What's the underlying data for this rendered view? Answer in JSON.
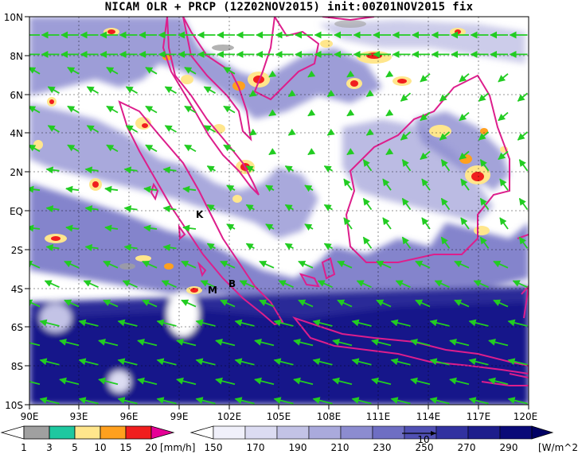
{
  "title": "NICAM OLR + PRCP (12Z02NOV2015) init:00Z01NOV2015 fix",
  "map": {
    "lon_range": [
      90,
      120
    ],
    "lat_range": [
      -10,
      10
    ],
    "x_tick_labels": [
      "90E",
      "93E",
      "96E",
      "99E",
      "102E",
      "105E",
      "108E",
      "111E",
      "114E",
      "117E",
      "120E"
    ],
    "y_tick_labels": [
      "10N",
      "8N",
      "6N",
      "4N",
      "2N",
      "EQ",
      "2S",
      "4S",
      "6S",
      "8S",
      "10S"
    ],
    "station_markers": [
      "K",
      "M",
      "B"
    ],
    "coastline_color": "#dd1e8c",
    "wind_vector_color": "#22cc22"
  },
  "precip_legend": {
    "unit": "[mm/h]",
    "tick_labels": [
      "1",
      "3",
      "5",
      "10",
      "15",
      "20"
    ],
    "colors": [
      "#a0a0a0",
      "#1ec8a0",
      "#ffe68c",
      "#ffa01e",
      "#f01e1e",
      "#e60096"
    ]
  },
  "olr_legend": {
    "unit": "[W/m^2]",
    "tick_labels": [
      "150",
      "170",
      "190",
      "210",
      "230",
      "250",
      "270",
      "290"
    ],
    "colors": [
      "#f0f0fa",
      "#dcdcf2",
      "#c3c3e6",
      "#aaaadc",
      "#8c8cd0",
      "#6e6ec3",
      "#5050b4",
      "#3232a0",
      "#1e1e8c",
      "#0a0a78"
    ],
    "vector_reference_label": "10"
  }
}
